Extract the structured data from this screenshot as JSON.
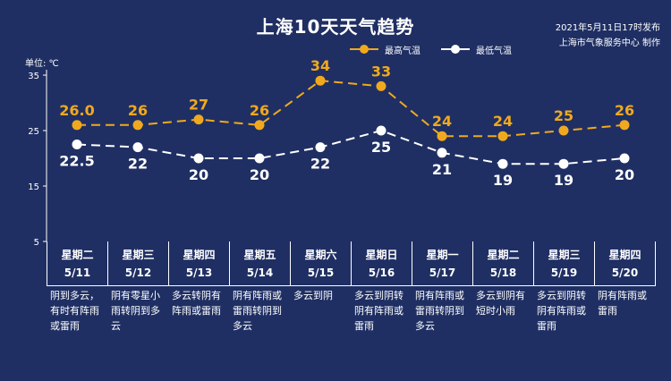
{
  "header": {
    "title": "上海10天天气趋势",
    "pub_time": "2021年5月11日17时发布",
    "maker": "上海市气象服务中心 制作",
    "unit": "单位: ℃"
  },
  "legend": {
    "high": "最高气温",
    "low": "最低气温"
  },
  "colors": {
    "background": "#1f2f63",
    "high": "#f0a91e",
    "low": "#ffffff"
  },
  "chart_data": {
    "type": "line",
    "title": "上海10天天气趋势",
    "ylabel": "单位: ℃",
    "ylim": [
      5,
      35
    ],
    "yticks": [
      "5",
      "15",
      "25",
      "35"
    ],
    "grid": false,
    "legend_position": "top-right",
    "categories": [
      "5/11",
      "5/12",
      "5/13",
      "5/14",
      "5/15",
      "5/16",
      "5/17",
      "5/18",
      "5/19",
      "5/20"
    ],
    "series": [
      {
        "name": "最高气温",
        "values": [
          26.0,
          26,
          27,
          26,
          34,
          33,
          24,
          24,
          25,
          26
        ],
        "labels": [
          "26.0",
          "26",
          "27",
          "26",
          "34",
          "33",
          "24",
          "24",
          "25",
          "26"
        ]
      },
      {
        "name": "最低气温",
        "values": [
          22.5,
          22,
          20,
          20,
          22,
          25,
          21,
          19,
          19,
          20
        ],
        "labels": [
          "22.5",
          "22",
          "20",
          "20",
          "22",
          "25",
          "21",
          "19",
          "19",
          "20"
        ]
      }
    ]
  },
  "days": [
    {
      "weekday": "星期二",
      "date": "5/11",
      "desc": "阴到多云，有时有阵雨或雷雨"
    },
    {
      "weekday": "星期三",
      "date": "5/12",
      "desc": "阴有零星小雨转阴到多云"
    },
    {
      "weekday": "星期四",
      "date": "5/13",
      "desc": "多云转阴有阵雨或雷雨"
    },
    {
      "weekday": "星期五",
      "date": "5/14",
      "desc": "阴有阵雨或雷雨转阴到多云"
    },
    {
      "weekday": "星期六",
      "date": "5/15",
      "desc": "多云到阴"
    },
    {
      "weekday": "星期日",
      "date": "5/16",
      "desc": "多云到阴转阴有阵雨或雷雨"
    },
    {
      "weekday": "星期一",
      "date": "5/17",
      "desc": "阴有阵雨或雷雨转阴到多云"
    },
    {
      "weekday": "星期二",
      "date": "5/18",
      "desc": "多云到阴有短时小雨"
    },
    {
      "weekday": "星期三",
      "date": "5/19",
      "desc": "多云到阴转阴有阵雨或雷雨"
    },
    {
      "weekday": "星期四",
      "date": "5/20",
      "desc": "阴有阵雨或雷雨"
    }
  ]
}
